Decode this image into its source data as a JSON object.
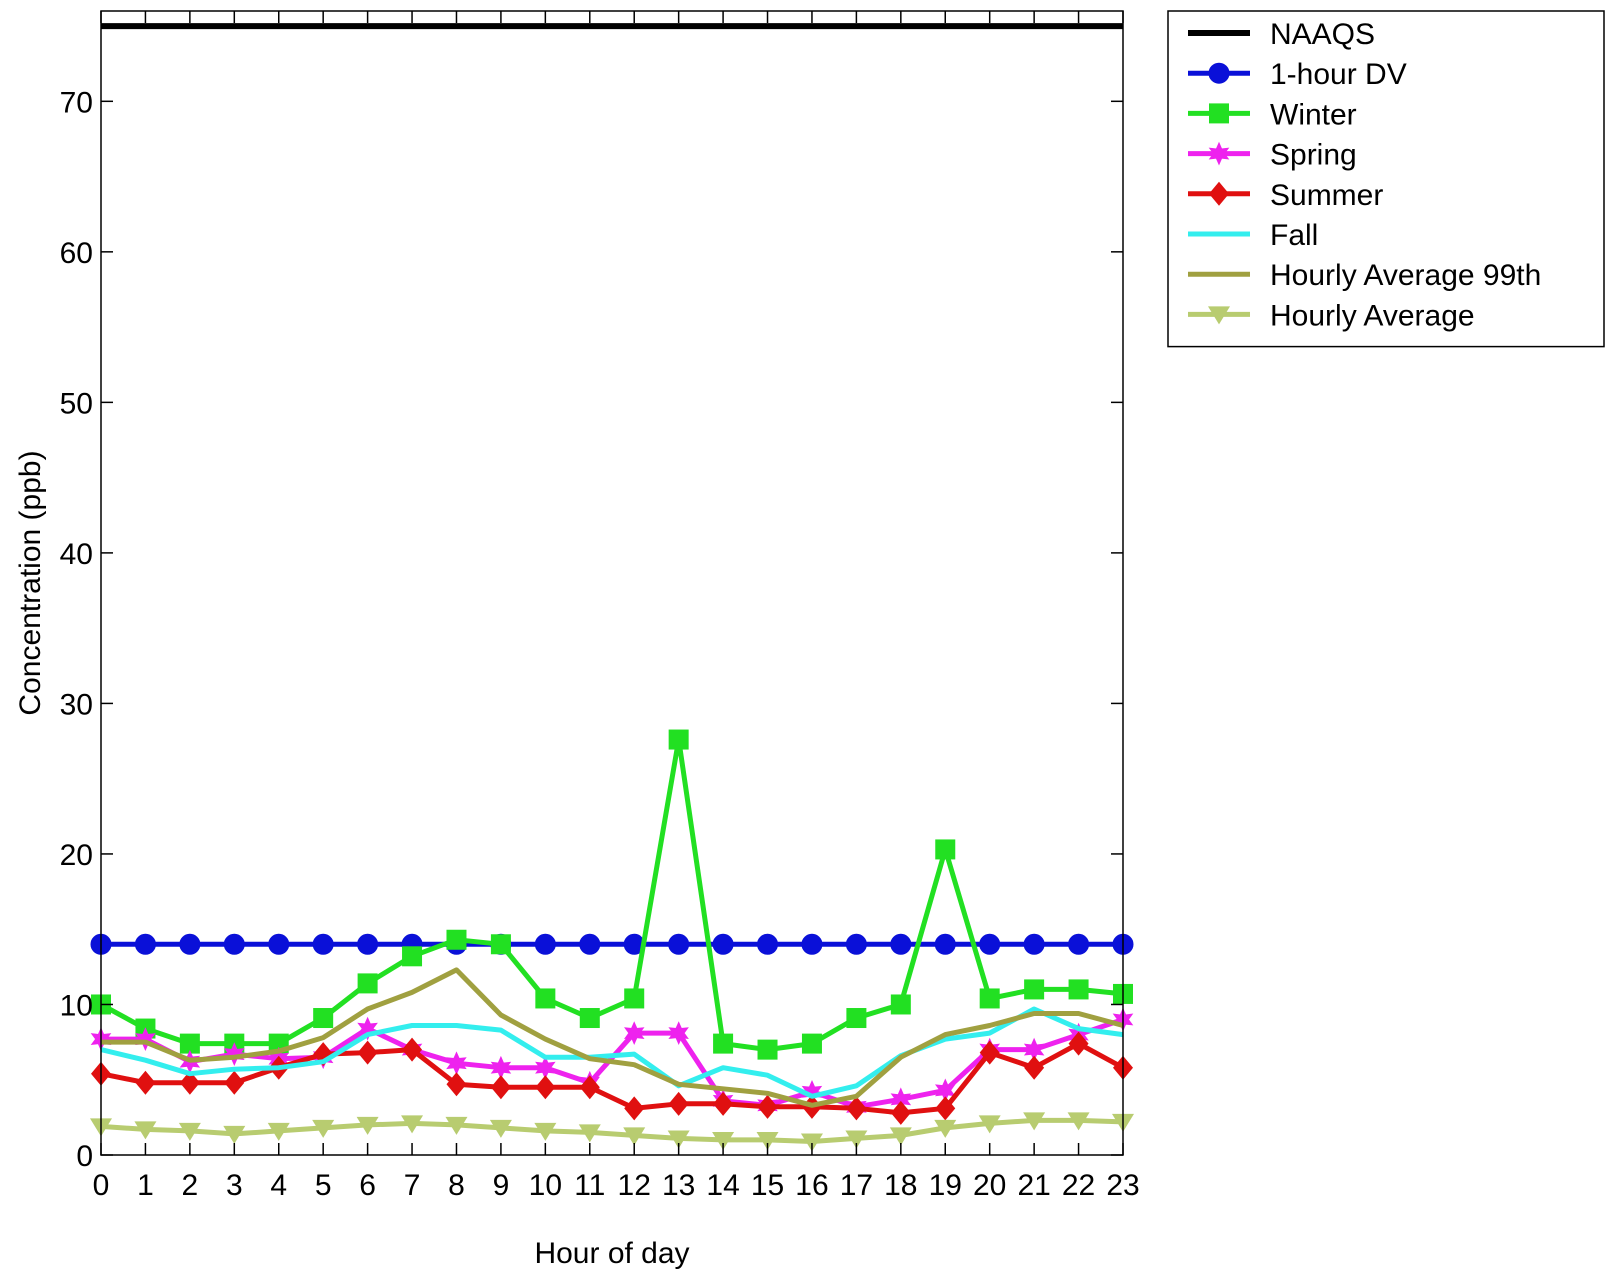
{
  "chart_data": {
    "type": "line",
    "title": "",
    "xlabel": "Hour of day",
    "ylabel": "Concentration (ppb)",
    "x": [
      0,
      1,
      2,
      3,
      4,
      5,
      6,
      7,
      8,
      9,
      10,
      11,
      12,
      13,
      14,
      15,
      16,
      17,
      18,
      19,
      20,
      21,
      22,
      23
    ],
    "xlim": [
      0,
      23
    ],
    "ylim": [
      0,
      76
    ],
    "yticks": [
      0,
      10,
      20,
      30,
      40,
      50,
      60,
      70
    ],
    "grid": false,
    "legend_position": "outside-top-right",
    "series": [
      {
        "name": "NAAQS",
        "color": "#000000",
        "marker": "none",
        "values": [
          75,
          75,
          75,
          75,
          75,
          75,
          75,
          75,
          75,
          75,
          75,
          75,
          75,
          75,
          75,
          75,
          75,
          75,
          75,
          75,
          75,
          75,
          75,
          75
        ]
      },
      {
        "name": "1-hour DV",
        "color": "#0a10d8",
        "marker": "circle",
        "values": [
          14,
          14,
          14,
          14,
          14,
          14,
          14,
          14,
          14,
          14,
          14,
          14,
          14,
          14,
          14,
          14,
          14,
          14,
          14,
          14,
          14,
          14,
          14,
          14
        ]
      },
      {
        "name": "Winter",
        "color": "#22e022",
        "marker": "square",
        "values": [
          10,
          8.4,
          7.4,
          7.4,
          7.4,
          9.1,
          11.4,
          13.2,
          14.3,
          14,
          10.4,
          9.1,
          10.4,
          27.6,
          7.4,
          7,
          7.4,
          9.1,
          10,
          20.3,
          10.4,
          11,
          11,
          10.7
        ]
      },
      {
        "name": "Spring",
        "color": "#ee22ee",
        "marker": "star",
        "values": [
          7.7,
          7.7,
          6.2,
          6.7,
          6.4,
          6.5,
          8.4,
          7,
          6.1,
          5.8,
          5.8,
          4.8,
          8.1,
          8.1,
          3.6,
          3.3,
          4.2,
          3.2,
          3.7,
          4.3,
          7,
          7,
          8,
          9
        ]
      },
      {
        "name": "Summer",
        "color": "#e01010",
        "marker": "diamond",
        "values": [
          5.4,
          4.8,
          4.8,
          4.8,
          5.8,
          6.7,
          6.8,
          7,
          4.7,
          4.5,
          4.5,
          4.5,
          3.1,
          3.4,
          3.4,
          3.2,
          3.2,
          3.1,
          2.8,
          3.1,
          6.8,
          5.8,
          7.4,
          5.8
        ]
      },
      {
        "name": "Fall",
        "color": "#33eeee",
        "marker": "none",
        "values": [
          7,
          6.3,
          5.4,
          5.7,
          5.8,
          6.2,
          8,
          8.6,
          8.6,
          8.3,
          6.5,
          6.5,
          6.7,
          4.6,
          5.8,
          5.3,
          3.9,
          4.6,
          6.6,
          7.7,
          8.1,
          9.7,
          8.4,
          8
        ]
      },
      {
        "name": "Hourly Average 99th",
        "color": "#a0a040",
        "marker": "none",
        "values": [
          7.5,
          7.5,
          6.3,
          6.5,
          6.9,
          7.8,
          9.7,
          10.8,
          12.3,
          9.3,
          7.7,
          6.4,
          6.0,
          4.7,
          4.4,
          4.1,
          3.3,
          3.9,
          6.5,
          8.0,
          8.6,
          9.4,
          9.4,
          8.6
        ]
      },
      {
        "name": "Hourly Average",
        "color": "#b8cc70",
        "marker": "triangle-down",
        "values": [
          1.9,
          1.7,
          1.6,
          1.4,
          1.6,
          1.8,
          2,
          2.1,
          2,
          1.8,
          1.6,
          1.5,
          1.3,
          1.1,
          1,
          1,
          0.9,
          1.1,
          1.3,
          1.8,
          2.1,
          2.3,
          2.3,
          2.2
        ]
      }
    ]
  }
}
